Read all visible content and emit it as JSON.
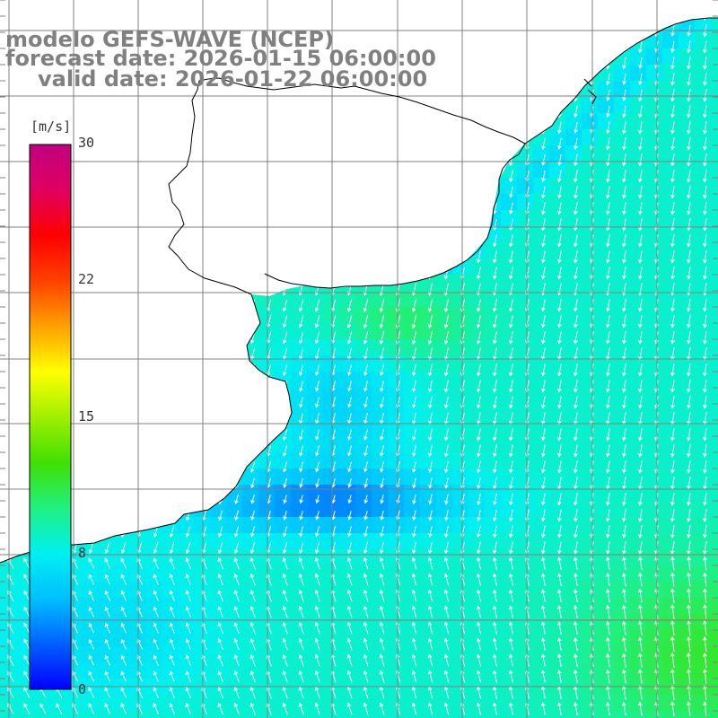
{
  "header": {
    "model": "modelo GEFS-WAVE (NCEP)",
    "forecast": "forecast date: 2026-01-15 06:00:00",
    "valid": "valid date: 2026-01-22 06:00:00"
  },
  "colorbar": {
    "unit": "[m/s]",
    "ticks": [
      "30",
      "22",
      "15",
      "8",
      "0"
    ],
    "min": 0,
    "max": 30,
    "colors": [
      "#0000ff",
      "#0060ff",
      "#00c0ff",
      "#00f0f0",
      "#20f080",
      "#40e000",
      "#a0f000",
      "#ffff00",
      "#ffa000",
      "#ff4000",
      "#ff0000",
      "#e00060",
      "#c00080"
    ]
  },
  "map": {
    "land_color": "#ffffff",
    "coast_color": "#000000",
    "grid_color": "#808080",
    "arrow_color": "#ffffff"
  },
  "chart_data": {
    "type": "heatmap",
    "variable": "wind speed",
    "units": "m/s",
    "range": [
      0,
      30
    ],
    "approx_speed_ranges": {
      "open_ocean_east": [
        7,
        10
      ],
      "southeast_corner": [
        10,
        12
      ],
      "central_coastal_band": [
        4,
        6
      ],
      "nearshore_bay": [
        9,
        11
      ]
    },
    "grid": "on"
  }
}
